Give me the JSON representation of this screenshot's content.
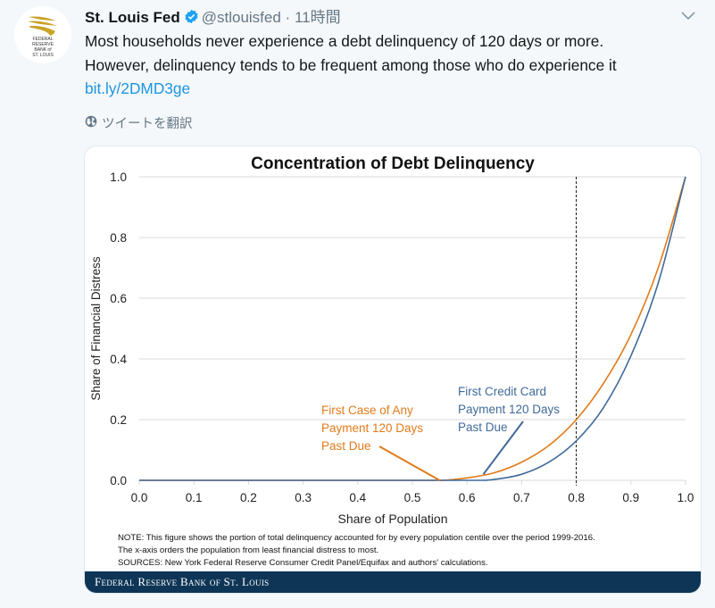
{
  "tweet": {
    "author_name": "St. Louis Fed",
    "verified": true,
    "handle": "@stlouisfed",
    "separator": "·",
    "time": "11時間",
    "text_line1": "Most households never experience a debt delinquency of 120 days or more.",
    "text_line2": "However, delinquency tends to be frequent among those who do experience it",
    "link": "bit.ly/2DMD3ge",
    "translate_label": "ツイートを翻訳",
    "avatar_text": [
      "FEDERAL",
      "RESERVE",
      "BANK of",
      "ST. LOUIS"
    ],
    "icons": {
      "verified": "verified-badge-icon",
      "caret": "chevron-down-icon",
      "translate": "globe-icon"
    }
  },
  "colors": {
    "orange": "#e07b1a",
    "blue": "#416a9b",
    "link": "#1b95e0",
    "footer": "#0e3556",
    "gold": "#c9a227"
  },
  "chart_data": {
    "type": "line",
    "title": "Concentration of Debt Delinquency",
    "xlabel": "Share of Population",
    "ylabel": "Share of Financial Distress",
    "xlim": [
      0,
      1
    ],
    "ylim": [
      0,
      1
    ],
    "x_ticks": [
      "0.0",
      "0.1",
      "0.2",
      "0.3",
      "0.4",
      "0.5",
      "0.6",
      "0.7",
      "0.8",
      "0.9",
      "1.0"
    ],
    "y_ticks": [
      "0.0",
      "0.2",
      "0.4",
      "0.6",
      "0.8",
      "1.0"
    ],
    "grid": "horizontal",
    "reference_line": {
      "x": 0.8,
      "style": "dashed"
    },
    "series": [
      {
        "name": "First Case of Any Payment 120 Days Past Due",
        "color": "#e07b1a",
        "x": [
          0,
          0.55,
          0.6,
          0.65,
          0.7,
          0.75,
          0.8,
          0.85,
          0.9,
          0.95,
          1.0
        ],
        "y": [
          0,
          0,
          0.008,
          0.025,
          0.06,
          0.115,
          0.2,
          0.32,
          0.48,
          0.7,
          1.0
        ]
      },
      {
        "name": "First Credit Card Payment 120 Days Past Due",
        "color": "#416a9b",
        "x": [
          0,
          0.63,
          0.65,
          0.7,
          0.75,
          0.8,
          0.85,
          0.9,
          0.95,
          1.0
        ],
        "y": [
          0,
          0,
          0.003,
          0.02,
          0.06,
          0.13,
          0.24,
          0.41,
          0.65,
          1.0
        ]
      }
    ],
    "annotations": [
      {
        "text": [
          "First Case of Any",
          "Payment 120 Days",
          "Past Due"
        ],
        "series": 0,
        "points_to_x": 0.55,
        "points_to_y": 0.0
      },
      {
        "text": [
          "First Credit Card",
          "Payment 120 Days",
          "Past Due"
        ],
        "series": 1,
        "points_to_x": 0.63,
        "points_to_y": 0.02
      }
    ],
    "note_lines": [
      "NOTE: This figure shows the portion of total delinquency accounted for by every population centile over the period 1999-2016.",
      "The x-axis orders the population from least financial distress to most.",
      "SOURCES: New York Federal Reserve Consumer Credit Panel/Equifax and authors' calculations."
    ],
    "footer": "Federal Reserve Bank of St. Louis"
  }
}
